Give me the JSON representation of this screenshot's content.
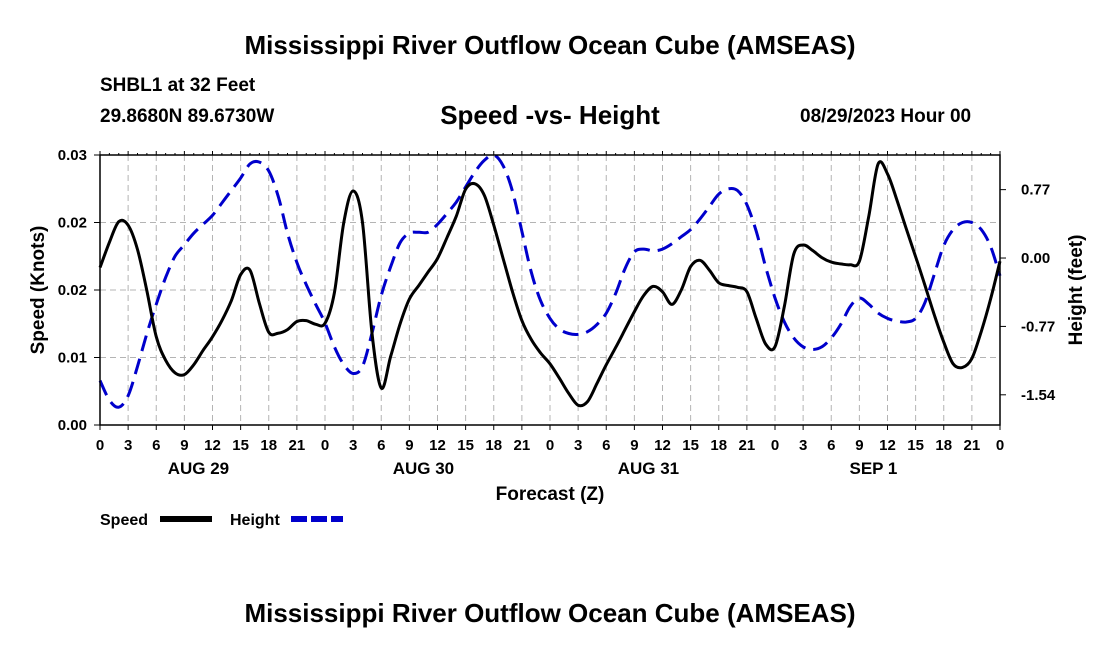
{
  "header": {
    "title": "Mississippi River Outflow Ocean Cube (AMSEAS)",
    "station": "SHBL1 at 32 Feet",
    "coordinates": "29.8680N  89.6730W",
    "subtitle": "Speed -vs- Height",
    "datetime": "08/29/2023 Hour 00"
  },
  "footer": {
    "title": "Mississippi River Outflow Ocean Cube (AMSEAS)"
  },
  "chart_data": {
    "type": "line",
    "title": "Speed -vs- Height",
    "xlabel": "Forecast (Z)",
    "ylabel_left": "Speed (Knots)",
    "ylabel_right": "Height (feet)",
    "x_range_hours": [
      0,
      96
    ],
    "x_tick_step_hours": 3,
    "x_tick_labels": [
      "0",
      "3",
      "6",
      "9",
      "12",
      "15",
      "18",
      "21",
      "0",
      "3",
      "6",
      "9",
      "12",
      "15",
      "18",
      "21",
      "0",
      "3",
      "6",
      "9",
      "12",
      "15",
      "18",
      "21",
      "0",
      "3",
      "6",
      "9",
      "12",
      "15",
      "18",
      "21",
      "0"
    ],
    "date_labels": [
      {
        "label": "AUG 29",
        "hour": 10.5
      },
      {
        "label": "AUG 30",
        "hour": 34.5
      },
      {
        "label": "AUG 31",
        "hour": 58.5
      },
      {
        "label": "SEP 1",
        "hour": 82.5
      }
    ],
    "y_left": {
      "min": 0,
      "max": 0.03,
      "ticks": [
        0,
        0.0075,
        0.015,
        0.0225,
        0.03
      ],
      "tick_labels": [
        "0.00",
        "0.01",
        "0.02",
        "0.02",
        "0.03"
      ]
    },
    "y_right": {
      "min": -1.88,
      "max": 1.16,
      "ticks": [
        -1.54,
        -0.77,
        0.0,
        0.77
      ],
      "tick_labels": [
        "-1.54",
        "-0.77",
        "0.00",
        "0.77"
      ]
    },
    "grid": true,
    "legend": [
      {
        "label": "Speed",
        "color": "#000000",
        "style": "solid"
      },
      {
        "label": "Height",
        "color": "#0000cc",
        "style": "dashed"
      }
    ],
    "series": [
      {
        "name": "Speed",
        "axis": "left",
        "color": "#000000",
        "points": [
          [
            0,
            0.0175
          ],
          [
            1,
            0.0203
          ],
          [
            2,
            0.0226
          ],
          [
            3,
            0.0222
          ],
          [
            4,
            0.0195
          ],
          [
            5,
            0.0149
          ],
          [
            6,
            0.0098
          ],
          [
            7,
            0.0072
          ],
          [
            8,
            0.0058
          ],
          [
            9,
            0.0056
          ],
          [
            10,
            0.0067
          ],
          [
            11,
            0.0083
          ],
          [
            12,
            0.0098
          ],
          [
            13,
            0.0116
          ],
          [
            14,
            0.0138
          ],
          [
            15,
            0.0167
          ],
          [
            16,
            0.0172
          ],
          [
            17,
            0.0135
          ],
          [
            18,
            0.0103
          ],
          [
            19,
            0.0102
          ],
          [
            20,
            0.0106
          ],
          [
            21,
            0.0115
          ],
          [
            22,
            0.0116
          ],
          [
            23,
            0.0112
          ],
          [
            24,
            0.0113
          ],
          [
            25,
            0.0147
          ],
          [
            26,
            0.0225
          ],
          [
            27,
            0.026
          ],
          [
            28,
            0.0225
          ],
          [
            29,
            0.0103
          ],
          [
            30,
            0.0041
          ],
          [
            31,
            0.0076
          ],
          [
            32,
            0.0112
          ],
          [
            33,
            0.014
          ],
          [
            34,
            0.0155
          ],
          [
            35,
            0.017
          ],
          [
            36,
            0.0185
          ],
          [
            37,
            0.0208
          ],
          [
            38,
            0.0232
          ],
          [
            39,
            0.0262
          ],
          [
            40,
            0.0268
          ],
          [
            41,
            0.0255
          ],
          [
            42,
            0.0222
          ],
          [
            43,
            0.0185
          ],
          [
            44,
            0.0148
          ],
          [
            45,
            0.0116
          ],
          [
            46,
            0.0095
          ],
          [
            47,
            0.008
          ],
          [
            48,
            0.0068
          ],
          [
            49,
            0.0052
          ],
          [
            50,
            0.0035
          ],
          [
            51,
            0.0022
          ],
          [
            52,
            0.0026
          ],
          [
            53,
            0.0046
          ],
          [
            54,
            0.0067
          ],
          [
            55,
            0.0086
          ],
          [
            56,
            0.0106
          ],
          [
            57,
            0.0126
          ],
          [
            58,
            0.0144
          ],
          [
            59,
            0.0154
          ],
          [
            60,
            0.0148
          ],
          [
            61,
            0.0134
          ],
          [
            62,
            0.015
          ],
          [
            63,
            0.0176
          ],
          [
            64,
            0.0183
          ],
          [
            65,
            0.0172
          ],
          [
            66,
            0.0158
          ],
          [
            67,
            0.0155
          ],
          [
            68,
            0.0153
          ],
          [
            69,
            0.0148
          ],
          [
            70,
            0.0118
          ],
          [
            71,
            0.009
          ],
          [
            72,
            0.0087
          ],
          [
            73,
            0.0132
          ],
          [
            74,
            0.019
          ],
          [
            75,
            0.02
          ],
          [
            76,
            0.0194
          ],
          [
            77,
            0.0186
          ],
          [
            78,
            0.0181
          ],
          [
            79,
            0.0179
          ],
          [
            80,
            0.0178
          ],
          [
            81,
            0.0182
          ],
          [
            82,
            0.0232
          ],
          [
            83,
            0.029
          ],
          [
            84,
            0.0279
          ],
          [
            85,
            0.025
          ],
          [
            86,
            0.0218
          ],
          [
            87,
            0.0187
          ],
          [
            88,
            0.0155
          ],
          [
            89,
            0.0122
          ],
          [
            90,
            0.0092
          ],
          [
            91,
            0.0068
          ],
          [
            92,
            0.0064
          ],
          [
            93,
            0.0074
          ],
          [
            94,
            0.0104
          ],
          [
            95,
            0.014
          ],
          [
            96,
            0.0182
          ]
        ]
      },
      {
        "name": "Height",
        "axis": "right",
        "color": "#0000cc",
        "points": [
          [
            0,
            -1.38
          ],
          [
            1,
            -1.6
          ],
          [
            2,
            -1.68
          ],
          [
            3,
            -1.55
          ],
          [
            4,
            -1.22
          ],
          [
            5,
            -0.85
          ],
          [
            6,
            -0.52
          ],
          [
            7,
            -0.22
          ],
          [
            8,
            0.02
          ],
          [
            9,
            0.15
          ],
          [
            10,
            0.28
          ],
          [
            11,
            0.38
          ],
          [
            12,
            0.48
          ],
          [
            13,
            0.62
          ],
          [
            14,
            0.76
          ],
          [
            15,
            0.9
          ],
          [
            16,
            1.06
          ],
          [
            17,
            1.08
          ],
          [
            18,
            0.98
          ],
          [
            19,
            0.7
          ],
          [
            20,
            0.28
          ],
          [
            21,
            -0.05
          ],
          [
            22,
            -0.3
          ],
          [
            23,
            -0.52
          ],
          [
            24,
            -0.73
          ],
          [
            25,
            -1.0
          ],
          [
            26,
            -1.2
          ],
          [
            27,
            -1.3
          ],
          [
            28,
            -1.22
          ],
          [
            29,
            -0.85
          ],
          [
            30,
            -0.42
          ],
          [
            31,
            -0.1
          ],
          [
            32,
            0.17
          ],
          [
            33,
            0.28
          ],
          [
            34,
            0.29
          ],
          [
            35,
            0.29
          ],
          [
            36,
            0.38
          ],
          [
            37,
            0.5
          ],
          [
            38,
            0.63
          ],
          [
            39,
            0.8
          ],
          [
            40,
            0.97
          ],
          [
            41,
            1.1
          ],
          [
            42,
            1.16
          ],
          [
            43,
            1.04
          ],
          [
            44,
            0.75
          ],
          [
            45,
            0.3
          ],
          [
            46,
            -0.16
          ],
          [
            47,
            -0.48
          ],
          [
            48,
            -0.68
          ],
          [
            49,
            -0.8
          ],
          [
            50,
            -0.85
          ],
          [
            51,
            -0.86
          ],
          [
            52,
            -0.83
          ],
          [
            53,
            -0.75
          ],
          [
            54,
            -0.62
          ],
          [
            55,
            -0.4
          ],
          [
            56,
            -0.12
          ],
          [
            57,
            0.07
          ],
          [
            58,
            0.1
          ],
          [
            59,
            0.08
          ],
          [
            60,
            0.1
          ],
          [
            61,
            0.16
          ],
          [
            62,
            0.24
          ],
          [
            63,
            0.32
          ],
          [
            64,
            0.44
          ],
          [
            65,
            0.58
          ],
          [
            66,
            0.72
          ],
          [
            67,
            0.78
          ],
          [
            68,
            0.76
          ],
          [
            69,
            0.6
          ],
          [
            70,
            0.3
          ],
          [
            71,
            -0.1
          ],
          [
            72,
            -0.45
          ],
          [
            73,
            -0.72
          ],
          [
            74,
            -0.9
          ],
          [
            75,
            -1.0
          ],
          [
            76,
            -1.03
          ],
          [
            77,
            -1.0
          ],
          [
            78,
            -0.9
          ],
          [
            79,
            -0.75
          ],
          [
            80,
            -0.55
          ],
          [
            81,
            -0.45
          ],
          [
            82,
            -0.52
          ],
          [
            83,
            -0.62
          ],
          [
            84,
            -0.68
          ],
          [
            85,
            -0.71
          ],
          [
            86,
            -0.72
          ],
          [
            87,
            -0.68
          ],
          [
            88,
            -0.5
          ],
          [
            89,
            -0.18
          ],
          [
            90,
            0.14
          ],
          [
            91,
            0.32
          ],
          [
            92,
            0.4
          ],
          [
            93,
            0.4
          ],
          [
            94,
            0.32
          ],
          [
            95,
            0.13
          ],
          [
            96,
            -0.2
          ]
        ]
      }
    ]
  }
}
